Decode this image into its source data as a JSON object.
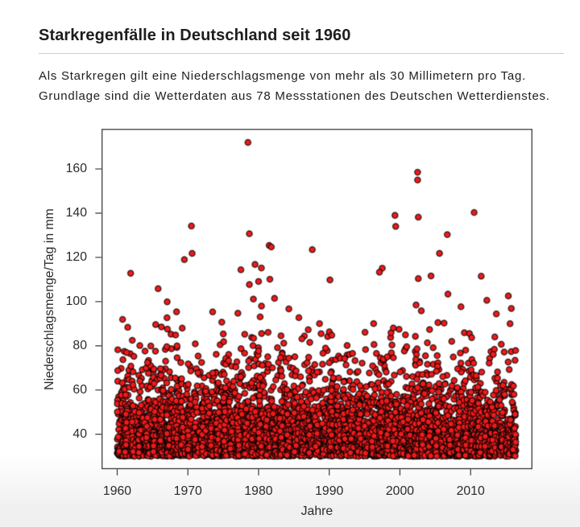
{
  "page": {
    "title": "Starkregenfälle in Deutschland seit 1960",
    "subtitle_lines": [
      "Als Starkregen gilt eine Niederschlagsmenge von mehr als 30 Millimetern pro Tag.",
      "Grundlage sind die Wetterdaten aus 78 Messstationen des Deutschen Wetterdienstes."
    ],
    "colors": {
      "title_text": "#1d1d1d",
      "subtitle_text": "#222222",
      "divider": "#cccccc",
      "page_fade_bottom": "#f0f0f0"
    }
  },
  "chart_data": {
    "type": "scatter",
    "title": "Starkregenfälle in Deutschland seit 1960",
    "xlabel": "Jahre",
    "ylabel": "Niederschlagsmenge/Tag in mm",
    "x_ticks": [
      1960,
      1970,
      1980,
      1990,
      2000,
      2010
    ],
    "y_ticks": [
      40,
      60,
      80,
      100,
      120,
      140,
      160
    ],
    "x_axis_range": [
      1957.9,
      2018.7
    ],
    "y_axis_range": [
      24.4,
      177.9
    ],
    "x_data_range": [
      1960.0,
      2016.4
    ],
    "y_data_min_threshold_mm": 30,
    "y_data_max_mm": 172,
    "grid": false,
    "legend": "none",
    "point_style": {
      "fill": "#f11a1a",
      "stroke": "#000000",
      "radius_px": 3.65,
      "stroke_px": 1.0
    },
    "axis_color": "#4d4d4d",
    "tick_label_color": "#2e2e2e",
    "n_points_total_approx": 5500,
    "outlier_points": [
      [
        1978.5,
        172.0
      ],
      [
        2002.5,
        158.5
      ],
      [
        2002.5,
        155.0
      ],
      [
        2010.5,
        140.3
      ],
      [
        1999.3,
        139.0
      ],
      [
        2002.6,
        138.2
      ],
      [
        1970.5,
        134.2
      ],
      [
        1999.4,
        134.0
      ],
      [
        1978.7,
        130.7
      ],
      [
        2006.7,
        130.3
      ],
      [
        1981.5,
        125.4
      ],
      [
        1981.8,
        124.7
      ],
      [
        1987.6,
        123.5
      ],
      [
        2005.6,
        121.8
      ],
      [
        1970.6,
        121.8
      ],
      [
        1969.5,
        119.0
      ],
      [
        1979.5,
        116.8
      ],
      [
        1997.5,
        115.1
      ],
      [
        1980.4,
        115.2
      ],
      [
        1977.5,
        114.4
      ],
      [
        1997.1,
        113.3
      ],
      [
        1961.9,
        112.8
      ],
      [
        2004.4,
        111.6
      ],
      [
        2011.5,
        111.5
      ],
      [
        2002.6,
        110.4
      ],
      [
        1981.6,
        110.1
      ],
      [
        1990.1,
        109.8
      ],
      [
        1980.0,
        109.1
      ],
      [
        1978.7,
        107.7
      ]
    ],
    "cloud_model": {
      "seed": 1783,
      "points_per_year_base": 95,
      "exp_scale_mm": 12.0,
      "cutoff_mm": 107.0,
      "year_weight_range": [
        0.7,
        1.35
      ],
      "year_boosts": {
        "1978": 1.25,
        "1980": 1.2,
        "2002": 1.45,
        "2007": 1.15,
        "2010": 1.1
      }
    }
  }
}
